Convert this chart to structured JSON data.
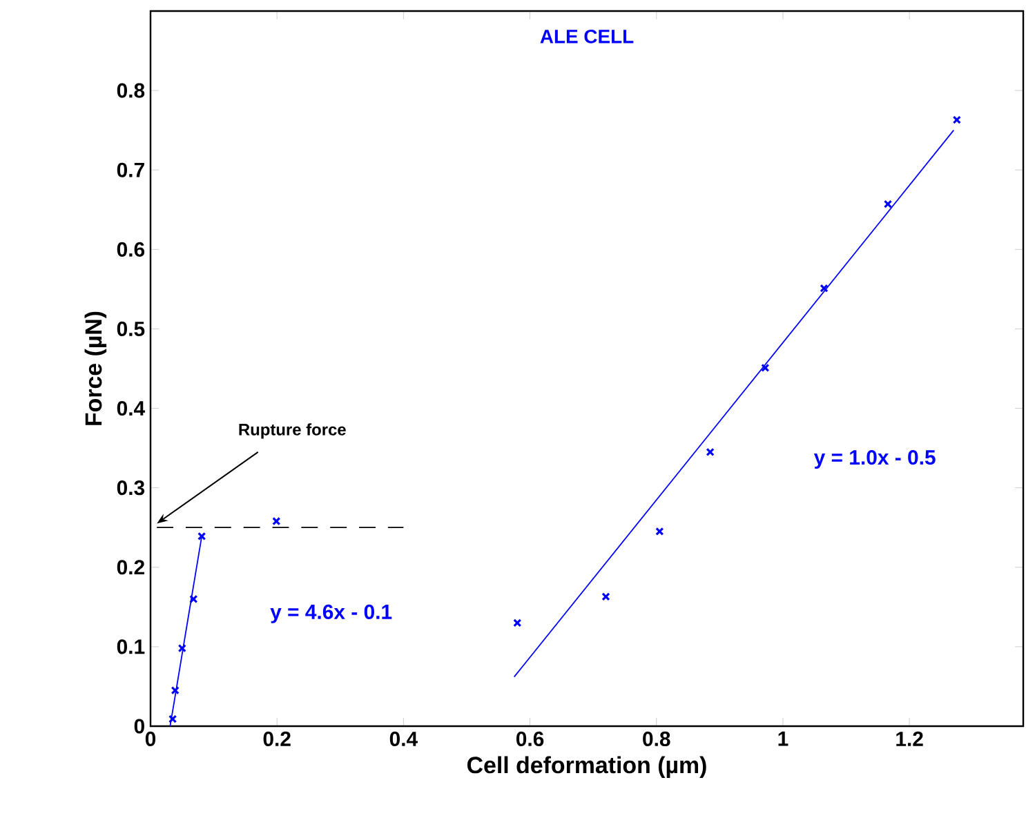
{
  "chart_data": {
    "type": "scatter",
    "title": "ALE CELL",
    "xlabel": "Cell deformation (µm)",
    "ylabel": "Force (µN)",
    "xlim": [
      0,
      1.38
    ],
    "ylim": [
      0,
      0.9
    ],
    "xticks": [
      0,
      0.2,
      0.4,
      0.6,
      0.8,
      1,
      1.2
    ],
    "yticks": [
      0,
      0.1,
      0.2,
      0.3,
      0.4,
      0.5,
      0.6,
      0.7,
      0.8
    ],
    "grid": false,
    "series": [
      {
        "color": "#0000ff",
        "marker": "cross",
        "x": [
          0.035,
          0.039,
          0.05,
          0.068,
          0.081,
          0.199
        ],
        "values": [
          0.009,
          0.045,
          0.098,
          0.16,
          0.239,
          0.258
        ]
      },
      {
        "color": "#0000ff",
        "marker": "cross",
        "x": [
          0.58,
          0.72,
          0.805,
          0.885,
          0.972,
          1.065,
          1.166,
          1.275
        ],
        "values": [
          0.13,
          0.163,
          0.245,
          0.345,
          0.451,
          0.551,
          0.657,
          0.763
        ]
      },
      {
        "type": "line",
        "color": "#0000ff",
        "marker": "none",
        "line_style": "solid",
        "x": [
          0.031,
          0.081
        ],
        "values": [
          0,
          0.239
        ]
      },
      {
        "type": "line",
        "color": "#0000ff",
        "marker": "none",
        "line_style": "solid",
        "x": [
          0.575,
          1.27
        ],
        "values": [
          0.062,
          0.75
        ]
      },
      {
        "type": "line",
        "color": "#000000",
        "marker": "none",
        "line_style": "dashed",
        "x": [
          0.01,
          0.4
        ],
        "values": [
          0.25,
          0.25
        ]
      }
    ],
    "annotations": [
      {
        "text": "Rupture force",
        "x": 0.01,
        "y": 0.255
      },
      "y = 4.6x - 0.1",
      "y = 1.0x - 0.5"
    ]
  }
}
